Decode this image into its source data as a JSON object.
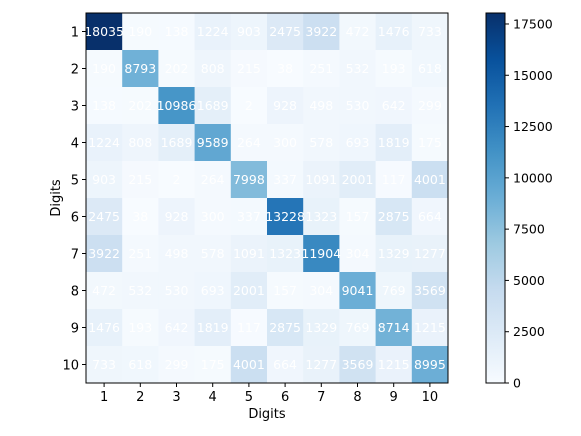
{
  "chart_data": {
    "type": "heatmap",
    "title": "",
    "xlabel": "Digits",
    "ylabel": "Digits",
    "x_categories": [
      "1",
      "2",
      "3",
      "4",
      "5",
      "6",
      "7",
      "8",
      "9",
      "10"
    ],
    "y_categories": [
      "1",
      "2",
      "3",
      "4",
      "5",
      "6",
      "7",
      "8",
      "9",
      "10"
    ],
    "values": [
      [
        18035,
        190,
        138,
        1224,
        903,
        2475,
        3922,
        472,
        1476,
        733
      ],
      [
        190,
        8793,
        202,
        808,
        215,
        38,
        251,
        532,
        193,
        618
      ],
      [
        138,
        202,
        10986,
        1689,
        2,
        928,
        498,
        530,
        642,
        299
      ],
      [
        1224,
        808,
        1689,
        9589,
        264,
        300,
        578,
        693,
        1819,
        175
      ],
      [
        903,
        215,
        2,
        264,
        7998,
        337,
        1091,
        2001,
        117,
        4001
      ],
      [
        2475,
        38,
        928,
        300,
        337,
        13228,
        1323,
        157,
        2875,
        664
      ],
      [
        3922,
        251,
        498,
        578,
        1091,
        1323,
        11904,
        304,
        1329,
        1277
      ],
      [
        472,
        532,
        530,
        693,
        2001,
        157,
        304,
        9041,
        769,
        3569
      ],
      [
        1476,
        193,
        642,
        1819,
        117,
        2875,
        1329,
        769,
        8714,
        1215
      ],
      [
        733,
        618,
        299,
        175,
        4001,
        664,
        1277,
        3569,
        1215,
        8995
      ]
    ],
    "colormap": "Blues",
    "colorbar": {
      "range": [
        0,
        18035
      ],
      "ticks": [
        0,
        2500,
        5000,
        7500,
        10000,
        12500,
        15000,
        17500
      ]
    }
  }
}
